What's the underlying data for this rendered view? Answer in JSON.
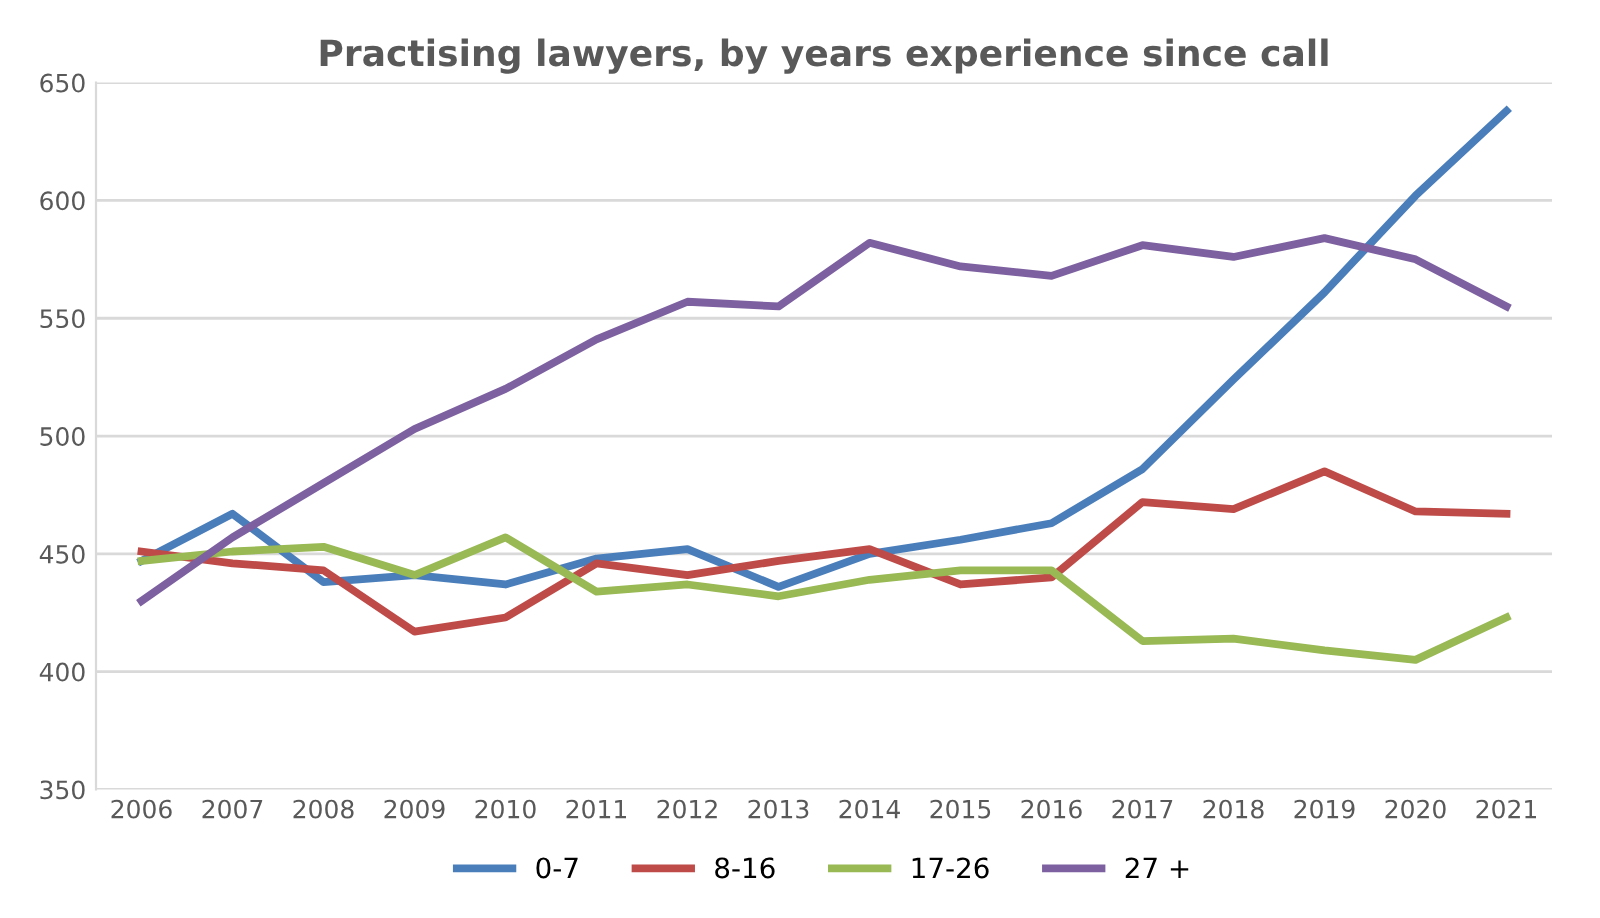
{
  "chart_data": {
    "type": "line",
    "title": "Practising lawyers, by years experience since call",
    "categories": [
      "2006",
      "2007",
      "2008",
      "2009",
      "2010",
      "2011",
      "2012",
      "2013",
      "2014",
      "2015",
      "2016",
      "2017",
      "2018",
      "2019",
      "2020",
      "2021"
    ],
    "series": [
      {
        "name": "0-7",
        "color": "#4a7ebb",
        "values": [
          447,
          467,
          438,
          441,
          437,
          448,
          452,
          436,
          450,
          456,
          463,
          486,
          524,
          561,
          602,
          638
        ]
      },
      {
        "name": "8-16",
        "color": "#be4b48",
        "values": [
          451,
          446,
          443,
          417,
          423,
          446,
          441,
          447,
          452,
          437,
          440,
          472,
          469,
          485,
          468,
          467
        ]
      },
      {
        "name": "17-26",
        "color": "#98b954",
        "values": [
          447,
          451,
          453,
          441,
          457,
          434,
          437,
          432,
          439,
          443,
          443,
          413,
          414,
          409,
          405,
          423
        ]
      },
      {
        "name": "27 +",
        "color": "#7d60a0",
        "values": [
          430,
          457,
          480,
          503,
          520,
          541,
          557,
          555,
          582,
          572,
          568,
          581,
          576,
          584,
          575,
          555
        ]
      }
    ],
    "ylim": [
      350,
      650
    ],
    "yticks": [
      350,
      400,
      450,
      500,
      550,
      600,
      650
    ],
    "grid": "y",
    "legend": "bottom",
    "marker": "none",
    "line_style": "solid"
  }
}
